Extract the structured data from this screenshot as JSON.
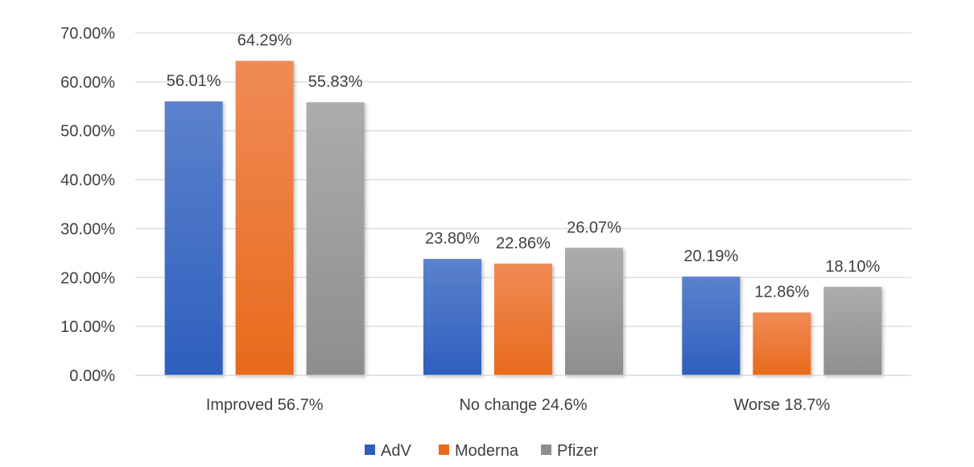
{
  "chart_data": {
    "type": "bar",
    "title": "",
    "xlabel": "",
    "ylabel": "",
    "categories": [
      "Improved 56.7%",
      "No change 24.6%",
      "Worse 18.7%"
    ],
    "series": [
      {
        "name": "AdV",
        "values": [
          56.01,
          23.8,
          20.19
        ],
        "labels": [
          "56.01%",
          "23.80%",
          "20.19%"
        ],
        "color_top": "#5b82cc",
        "color_bottom": "#2e5fbe"
      },
      {
        "name": "Moderna",
        "values": [
          64.29,
          22.86,
          12.86
        ],
        "labels": [
          "64.29%",
          "22.86%",
          "12.86%"
        ],
        "color_top": "#f08b56",
        "color_bottom": "#e86a1c"
      },
      {
        "name": "Pfizer",
        "values": [
          55.83,
          26.07,
          18.1
        ],
        "labels": [
          "55.83%",
          "26.07%",
          "18.10%"
        ],
        "color_top": "#acacac",
        "color_bottom": "#8e8e8e"
      }
    ],
    "ylim": [
      0,
      70
    ],
    "yticks": [
      0,
      10,
      20,
      30,
      40,
      50,
      60,
      70
    ],
    "ytick_labels": [
      "0.00%",
      "10.00%",
      "20.00%",
      "30.00%",
      "40.00%",
      "50.00%",
      "60.00%",
      "70.00%"
    ],
    "grid": true,
    "legend_position": "bottom"
  }
}
